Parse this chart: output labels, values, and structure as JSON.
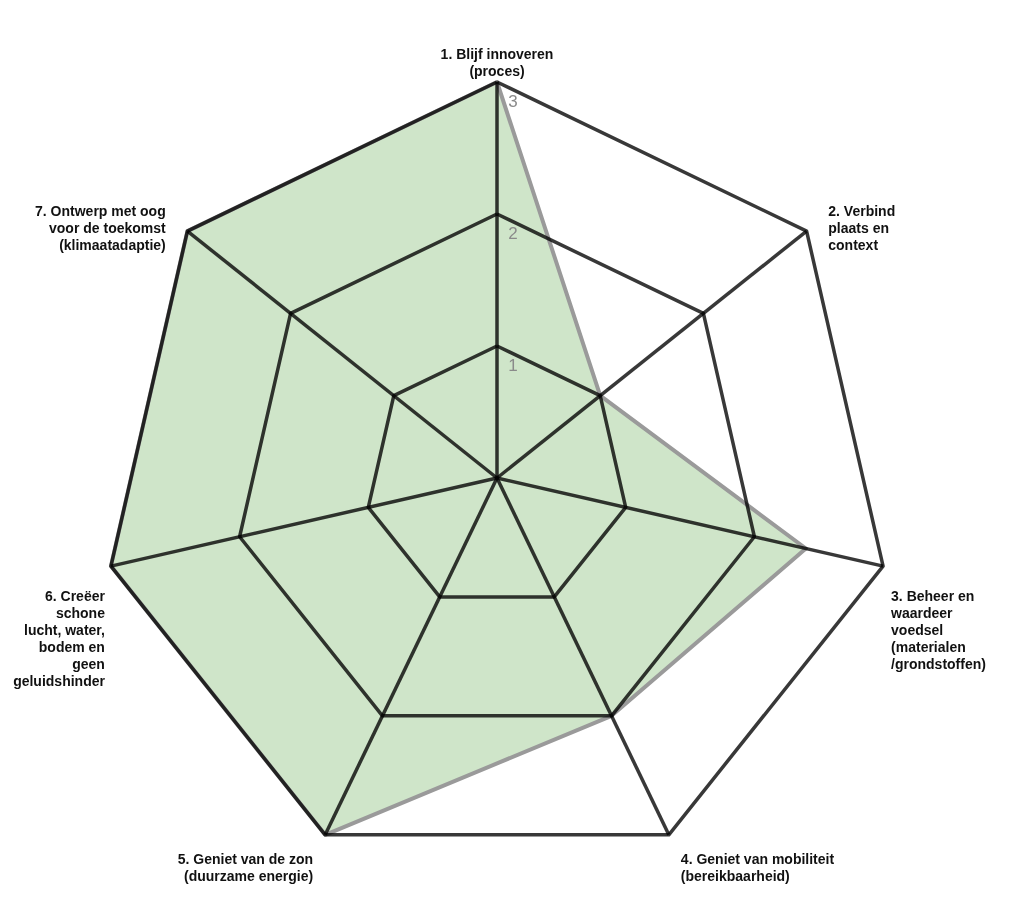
{
  "chart_data": {
    "type": "radar",
    "categories": [
      "1. Blijf innoveren\n(proces)",
      "2. Verbind\nplaats en\ncontext",
      "3. Beheer en\nwaardeer\nvoedsel\n(materialen\n/grondstoffen)",
      "4. Geniet van mobiliteit\n(bereikbaarheid)",
      "5. Geniet van de zon\n(duurzame energie)",
      "6. Creëer\nschone\n\nlucht, water,\nbodem en\ngeen\ngeluidshinder",
      "7. Ontwerp met oog\nvoor de toekomst\n(klimaatadaptie)"
    ],
    "series": [
      {
        "color": "#cfe5c9",
        "values": [
          3,
          1,
          2.4,
          2,
          3,
          3,
          3
        ]
      }
    ],
    "ylim": [
      0,
      3
    ],
    "yticks": [
      1,
      2,
      3
    ],
    "grid": true
  }
}
